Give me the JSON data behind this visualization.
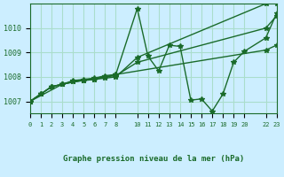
{
  "title": "Graphe pression niveau de la mer (hPa)",
  "background_color": "#cceeff",
  "grid_color": "#aaddcc",
  "line_color": "#1a6b2a",
  "xlim": [
    0,
    23
  ],
  "ylim": [
    1006.5,
    1011.0
  ],
  "yticks": [
    1007,
    1008,
    1009,
    1010
  ],
  "xticks": [
    0,
    1,
    2,
    3,
    4,
    5,
    6,
    7,
    8,
    10,
    11,
    12,
    13,
    14,
    15,
    16,
    17,
    18,
    19,
    20,
    22,
    23
  ],
  "series": [
    {
      "x": [
        0,
        1,
        2,
        3,
        4,
        5,
        6,
        7,
        8,
        10,
        22,
        23
      ],
      "y": [
        1007.0,
        1007.3,
        1007.6,
        1007.7,
        1007.8,
        1007.85,
        1007.9,
        1007.95,
        1008.0,
        1008.8,
        1011.0,
        1011.0
      ]
    },
    {
      "x": [
        0,
        1,
        2,
        3,
        4,
        5,
        6,
        7,
        8,
        10,
        11,
        12,
        13,
        14,
        15,
        16,
        17,
        18,
        19,
        20,
        22,
        23
      ],
      "y": [
        1007.0,
        1007.3,
        1007.6,
        1007.7,
        1007.85,
        1007.9,
        1007.95,
        1008.05,
        1008.1,
        1010.8,
        1008.85,
        1008.25,
        1009.3,
        1009.25,
        1007.05,
        1007.1,
        1006.6,
        1007.3,
        1008.6,
        1009.05,
        1009.6,
        1010.6
      ]
    },
    {
      "x": [
        0,
        1,
        2,
        3,
        4,
        5,
        6,
        7,
        8,
        10,
        22,
        23
      ],
      "y": [
        1007.0,
        1007.3,
        1007.6,
        1007.7,
        1007.8,
        1007.87,
        1007.9,
        1008.0,
        1008.05,
        1008.6,
        1010.0,
        1010.5
      ]
    },
    {
      "x": [
        0,
        3,
        5,
        7,
        8,
        22,
        23
      ],
      "y": [
        1007.0,
        1007.7,
        1007.87,
        1008.0,
        1008.1,
        1009.1,
        1009.3
      ]
    }
  ]
}
